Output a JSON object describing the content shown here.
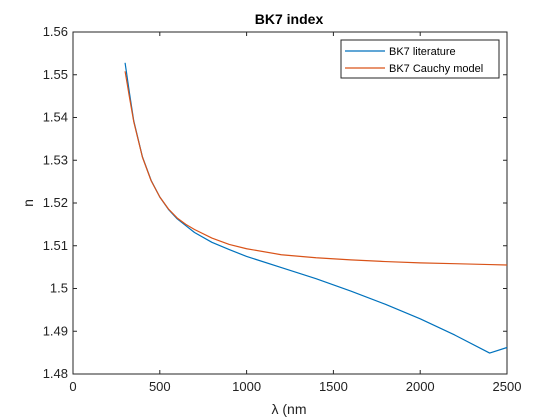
{
  "chart_data": {
    "type": "line",
    "title": "BK7 index",
    "xlabel": "λ (nm",
    "ylabel": "n",
    "xlim": [
      0,
      2500
    ],
    "ylim": [
      1.48,
      1.56
    ],
    "xticks": [
      0,
      500,
      1000,
      1500,
      2000,
      2500
    ],
    "xtick_labels": [
      "0",
      "500",
      "1000",
      "1500",
      "2000",
      "2500"
    ],
    "yticks": [
      1.48,
      1.49,
      1.5,
      1.51,
      1.52,
      1.53,
      1.54,
      1.55,
      1.56
    ],
    "ytick_labels": [
      "1.48",
      "1.49",
      "1.5",
      "1.51",
      "1.52",
      "1.53",
      "1.54",
      "1.55",
      "1.56"
    ],
    "grid": false,
    "legend_position": "top-right",
    "series": [
      {
        "name": "BK7 literature",
        "color": "#0072bd",
        "x": [
          300,
          325,
          350,
          400,
          450,
          500,
          550,
          600,
          650,
          700,
          800,
          900,
          1000,
          1200,
          1400,
          1600,
          1800,
          2000,
          2200,
          2400,
          2500
        ],
        "y": [
          1.5528,
          1.5458,
          1.5392,
          1.5308,
          1.5253,
          1.5214,
          1.5185,
          1.5163,
          1.5147,
          1.5131,
          1.5108,
          1.5091,
          1.5075,
          1.5049,
          1.5023,
          1.4994,
          1.4963,
          1.4929,
          1.4891,
          1.4849,
          1.4862
        ]
      },
      {
        "name": "BK7 Cauchy model",
        "color": "#d95319",
        "x": [
          300,
          325,
          350,
          400,
          450,
          500,
          550,
          600,
          650,
          700,
          800,
          900,
          1000,
          1200,
          1400,
          1600,
          1800,
          2000,
          2200,
          2400,
          2500
        ],
        "y": [
          1.5508,
          1.5448,
          1.539,
          1.5307,
          1.5252,
          1.5214,
          1.5186,
          1.5165,
          1.515,
          1.5138,
          1.5118,
          1.5103,
          1.5093,
          1.5079,
          1.5072,
          1.5067,
          1.5063,
          1.506,
          1.5058,
          1.5056,
          1.5055
        ]
      }
    ]
  }
}
